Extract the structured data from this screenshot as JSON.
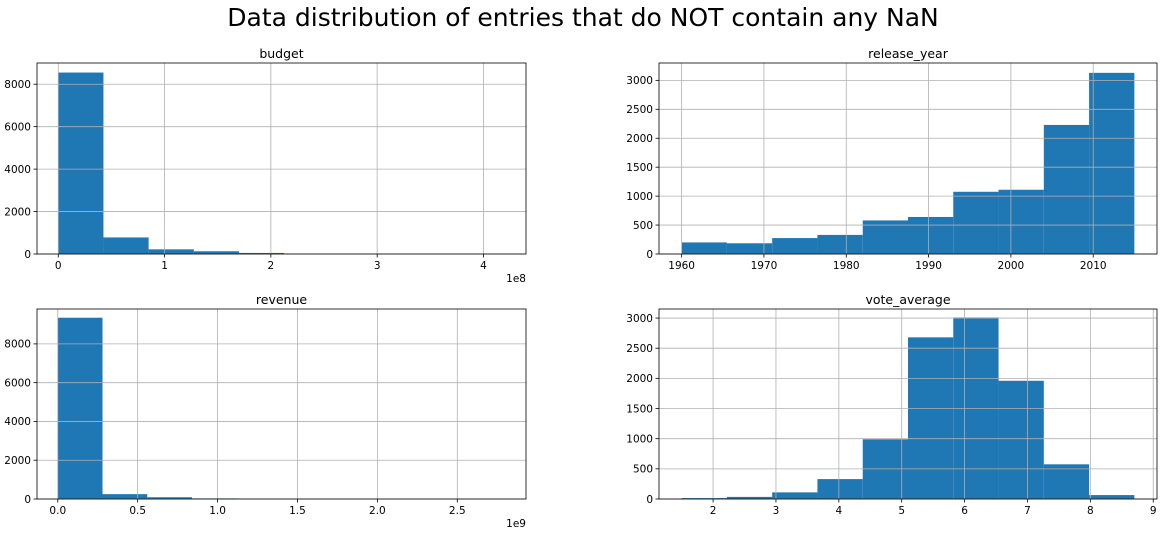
{
  "figure": {
    "title": "Data distribution of entries that do NOT contain any NaN"
  },
  "chart_data": [
    {
      "type": "bar",
      "title": "budget",
      "xlabel": "",
      "ylabel": "",
      "offset_text": "1e8",
      "xlim": [
        -0.2,
        4.4
      ],
      "ylim": [
        0,
        9000
      ],
      "grid": true,
      "bin_edges": [
        0,
        0.425,
        0.85,
        1.275,
        1.7,
        2.125,
        2.55,
        2.975,
        3.4,
        3.825,
        4.25
      ],
      "counts": [
        8550,
        780,
        220,
        130,
        50,
        15,
        5,
        3,
        2,
        2
      ],
      "xticks": [
        0,
        1,
        2,
        3,
        4
      ],
      "xtick_labels": [
        "0",
        "1",
        "2",
        "3",
        "4"
      ],
      "yticks": [
        0,
        2000,
        4000,
        6000,
        8000
      ],
      "ytick_labels": [
        "0",
        "2000",
        "4000",
        "6000",
        "8000"
      ]
    },
    {
      "type": "bar",
      "title": "release_year",
      "xlabel": "",
      "ylabel": "",
      "offset_text": "",
      "xlim": [
        1957.25,
        2017.75
      ],
      "ylim": [
        0,
        3300
      ],
      "grid": true,
      "bin_edges": [
        1960,
        1965.5,
        1971,
        1976.5,
        1982,
        1987.5,
        1993,
        1998.5,
        2004,
        2009.5,
        2015
      ],
      "counts": [
        200,
        185,
        275,
        330,
        580,
        640,
        1075,
        1110,
        2230,
        3130
      ],
      "xticks": [
        1960,
        1970,
        1980,
        1990,
        2000,
        2010
      ],
      "xtick_labels": [
        "1960",
        "1970",
        "1980",
        "1990",
        "2000",
        "2010"
      ],
      "yticks": [
        0,
        500,
        1000,
        1500,
        2000,
        2500,
        3000
      ],
      "ytick_labels": [
        "0",
        "500",
        "1000",
        "1500",
        "2000",
        "2500",
        "3000"
      ]
    },
    {
      "type": "bar",
      "title": "revenue",
      "xlabel": "",
      "ylabel": "",
      "offset_text": "1e9",
      "xlim": [
        -0.13,
        2.93
      ],
      "ylim": [
        0,
        9800
      ],
      "grid": true,
      "bin_edges": [
        0,
        0.28,
        0.56,
        0.84,
        1.12,
        1.4,
        1.68,
        1.96,
        2.24,
        2.52,
        2.8
      ],
      "counts": [
        9350,
        250,
        90,
        30,
        10,
        4,
        2,
        1,
        1,
        1
      ],
      "xticks": [
        0.0,
        0.5,
        1.0,
        1.5,
        2.0,
        2.5
      ],
      "xtick_labels": [
        "0.0",
        "0.5",
        "1.0",
        "1.5",
        "2.0",
        "2.5"
      ],
      "yticks": [
        0,
        2000,
        4000,
        6000,
        8000
      ],
      "ytick_labels": [
        "0",
        "2000",
        "4000",
        "6000",
        "8000"
      ]
    },
    {
      "type": "bar",
      "title": "vote_average",
      "xlabel": "",
      "ylabel": "",
      "offset_text": "",
      "xlim": [
        1.14,
        9.06
      ],
      "ylim": [
        0,
        3150
      ],
      "grid": true,
      "bin_edges": [
        1.5,
        2.22,
        2.94,
        3.66,
        4.38,
        5.1,
        5.82,
        6.54,
        7.26,
        7.98,
        8.7
      ],
      "counts": [
        15,
        35,
        110,
        330,
        990,
        2680,
        3010,
        1960,
        575,
        65
      ],
      "xticks": [
        2,
        3,
        4,
        5,
        6,
        7,
        8,
        9
      ],
      "xtick_labels": [
        "2",
        "3",
        "4",
        "5",
        "6",
        "7",
        "8",
        "9"
      ],
      "yticks": [
        0,
        500,
        1000,
        1500,
        2000,
        2500,
        3000
      ],
      "ytick_labels": [
        "0",
        "500",
        "1000",
        "1500",
        "2000",
        "2500",
        "3000"
      ]
    }
  ]
}
